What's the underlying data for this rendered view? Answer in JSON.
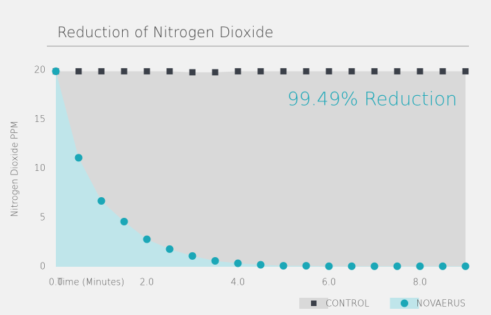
{
  "chart_data": {
    "type": "area-scatter",
    "title": "Reduction of Nitrogen Dioxide",
    "annotation": "99.49% Reduction",
    "x_label": "Time (Minutes)",
    "y_label": "Nitrogen Dioxide PPM",
    "x": [
      0,
      0.5,
      1,
      1.5,
      2,
      2.5,
      3,
      3.5,
      4,
      4.5,
      5,
      5.5,
      6,
      6.5,
      7,
      7.5,
      8,
      8.5,
      9
    ],
    "series": [
      {
        "name": "CONTROL",
        "color": "#3b4049",
        "area_color": "#d9d9d9",
        "marker": "square",
        "values": [
          19.9,
          19.9,
          19.9,
          19.9,
          19.9,
          19.9,
          19.8,
          19.8,
          19.9,
          19.9,
          19.9,
          19.9,
          19.9,
          19.9,
          19.9,
          19.9,
          19.9,
          19.9,
          19.9
        ]
      },
      {
        "name": "NOVAERUS",
        "color": "#1ba7b7",
        "area_color": "#bfe5ea",
        "marker": "circle",
        "values": [
          19.9,
          11.1,
          6.7,
          4.6,
          2.8,
          1.8,
          1.1,
          0.6,
          0.35,
          0.2,
          0.1,
          0.1,
          0.05,
          0.05,
          0.05,
          0.05,
          0.05,
          0.05,
          0.05
        ]
      }
    ],
    "xlim": [
      0,
      9
    ],
    "ylim": [
      0,
      20
    ],
    "xticks": [
      {
        "value": 0,
        "label": "0.0"
      },
      {
        "value": 2,
        "label": "2.0"
      },
      {
        "value": 4,
        "label": "4.0"
      },
      {
        "value": 6,
        "label": "6.0"
      },
      {
        "value": 8,
        "label": "8.0"
      }
    ],
    "yticks": [
      0,
      5,
      10,
      15,
      20
    ]
  }
}
